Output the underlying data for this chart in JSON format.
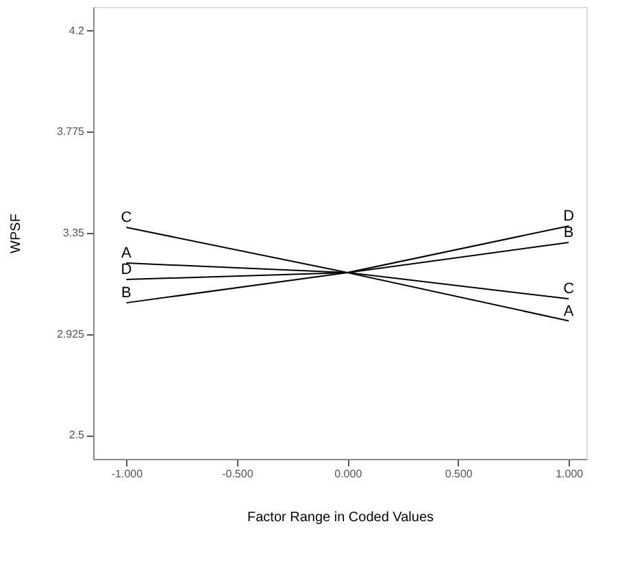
{
  "chart_data": {
    "type": "line",
    "xlabel": "Factor Range in Coded Values",
    "ylabel": "WPSF",
    "x": [
      -1,
      0,
      1
    ],
    "series": [
      {
        "name": "A",
        "color": "#000000",
        "values": [
          3.223,
          3.183,
          2.98
        ]
      },
      {
        "name": "B",
        "color": "#000000",
        "values": [
          3.056,
          3.183,
          3.31
        ]
      },
      {
        "name": "C",
        "color": "#000000",
        "values": [
          3.373,
          3.183,
          3.073
        ]
      },
      {
        "name": "D",
        "color": "#000000",
        "values": [
          3.154,
          3.183,
          3.379
        ]
      }
    ],
    "xlim": [
      -1.15,
      1.08
    ],
    "ylim": [
      2.4,
      4.3
    ],
    "xticks": [
      {
        "value": -1,
        "label": "-1.000"
      },
      {
        "value": -0.5,
        "label": "-0.500"
      },
      {
        "value": 0,
        "label": "0.000"
      },
      {
        "value": 0.5,
        "label": "0.500"
      },
      {
        "value": 1,
        "label": "1.000"
      }
    ],
    "yticks": [
      2.5,
      2.925,
      3.35,
      3.775,
      4.2
    ],
    "grid": false,
    "marker": "none",
    "line_style": "solid"
  }
}
